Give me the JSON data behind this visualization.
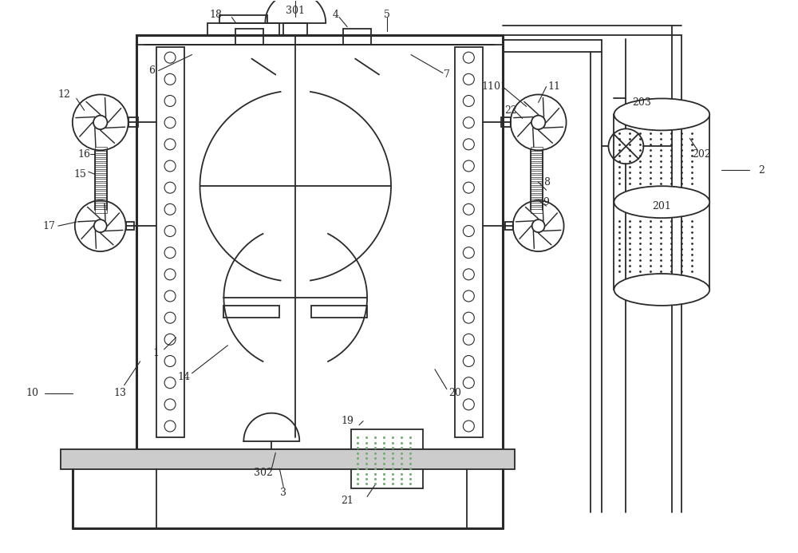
{
  "bg_color": "#ffffff",
  "lc": "#2a2a2a",
  "lw": 1.3,
  "lw_thick": 2.2,
  "fig_w": 10.0,
  "fig_h": 6.93,
  "dpi": 100
}
